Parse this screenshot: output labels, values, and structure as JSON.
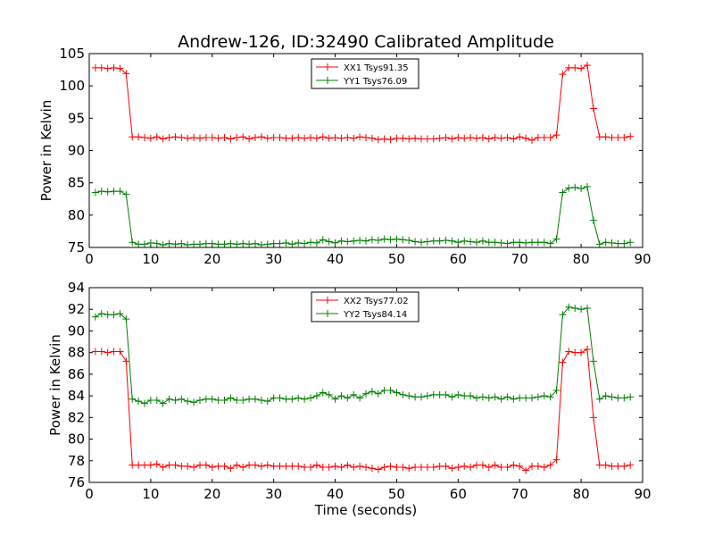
{
  "chart_data": [
    {
      "type": "line",
      "title": "Andrew-126, ID:32490 Calibrated Amplitude",
      "xlabel": "",
      "ylabel": "Power in Kelvin",
      "xlim": [
        0,
        90
      ],
      "ylim": [
        75,
        105
      ],
      "xticks": [
        "0",
        "10",
        "20",
        "30",
        "40",
        "50",
        "60",
        "70",
        "80",
        "90"
      ],
      "yticks": [
        "75",
        "80",
        "85",
        "90",
        "95",
        "100",
        "105"
      ],
      "legend_position": "top-center",
      "series": [
        {
          "name": "XX1 Tsys91.35",
          "color": "#ff0000",
          "x": [
            1,
            2,
            3,
            4,
            5,
            6,
            7,
            8,
            9,
            10,
            11,
            12,
            13,
            14,
            15,
            16,
            17,
            18,
            19,
            20,
            21,
            22,
            23,
            24,
            25,
            26,
            27,
            28,
            29,
            30,
            31,
            32,
            33,
            34,
            35,
            36,
            37,
            38,
            39,
            40,
            41,
            42,
            43,
            44,
            45,
            46,
            47,
            48,
            49,
            50,
            51,
            52,
            53,
            54,
            55,
            56,
            57,
            58,
            59,
            60,
            61,
            62,
            63,
            64,
            65,
            66,
            67,
            68,
            69,
            70,
            71,
            72,
            73,
            74,
            75,
            76,
            77,
            78,
            79,
            80,
            81,
            82,
            83,
            84,
            85,
            86,
            87,
            88
          ],
          "values": [
            102.8,
            102.8,
            102.7,
            102.8,
            102.7,
            101.9,
            92.1,
            92.1,
            92.0,
            91.9,
            92.1,
            91.8,
            92.0,
            92.1,
            92.0,
            91.9,
            92.0,
            91.9,
            92.0,
            92.0,
            91.9,
            92.0,
            91.8,
            92.0,
            92.1,
            91.8,
            92.0,
            92.1,
            91.9,
            92.0,
            92.0,
            91.9,
            91.9,
            92.0,
            91.9,
            92.0,
            91.9,
            92.1,
            91.9,
            92.0,
            91.9,
            92.0,
            91.9,
            92.1,
            92.0,
            91.9,
            91.7,
            91.8,
            91.7,
            91.9,
            91.9,
            91.8,
            91.9,
            91.8,
            91.8,
            91.8,
            91.9,
            92.0,
            91.8,
            92.0,
            91.9,
            92.0,
            91.9,
            92.0,
            91.8,
            92.0,
            91.9,
            92.0,
            91.8,
            92.1,
            91.9,
            91.6,
            92.0,
            92.0,
            92.0,
            92.4,
            101.8,
            102.8,
            102.8,
            102.7,
            103.2,
            96.5,
            92.1,
            92.1,
            92.0,
            92.0,
            92.0,
            92.2
          ]
        },
        {
          "name": "YY1 Tsys76.09",
          "color": "#008000",
          "x": [
            1,
            2,
            3,
            4,
            5,
            6,
            7,
            8,
            9,
            10,
            11,
            12,
            13,
            14,
            15,
            16,
            17,
            18,
            19,
            20,
            21,
            22,
            23,
            24,
            25,
            26,
            27,
            28,
            29,
            30,
            31,
            32,
            33,
            34,
            35,
            36,
            37,
            38,
            39,
            40,
            41,
            42,
            43,
            44,
            45,
            46,
            47,
            48,
            49,
            50,
            51,
            52,
            53,
            54,
            55,
            56,
            57,
            58,
            59,
            60,
            61,
            62,
            63,
            64,
            65,
            66,
            67,
            68,
            69,
            70,
            71,
            72,
            73,
            74,
            75,
            76,
            77,
            78,
            79,
            80,
            81,
            82,
            83,
            84,
            85,
            86,
            87,
            88
          ],
          "values": [
            83.5,
            83.7,
            83.6,
            83.7,
            83.7,
            83.2,
            75.8,
            75.5,
            75.5,
            75.7,
            75.6,
            75.4,
            75.6,
            75.5,
            75.6,
            75.4,
            75.5,
            75.5,
            75.6,
            75.6,
            75.5,
            75.5,
            75.6,
            75.5,
            75.6,
            75.5,
            75.6,
            75.4,
            75.5,
            75.6,
            75.6,
            75.7,
            75.5,
            75.7,
            75.6,
            75.8,
            75.7,
            76.2,
            75.9,
            75.7,
            76.0,
            75.9,
            76.0,
            76.1,
            76.0,
            76.2,
            76.1,
            76.3,
            76.2,
            76.3,
            76.2,
            76.1,
            75.9,
            75.8,
            75.9,
            76.0,
            76.0,
            76.1,
            76.0,
            75.8,
            76.0,
            75.9,
            75.8,
            76.0,
            75.8,
            75.8,
            75.7,
            75.6,
            75.8,
            75.8,
            75.7,
            75.8,
            75.8,
            75.8,
            75.6,
            76.3,
            83.5,
            84.2,
            84.3,
            84.1,
            84.4,
            79.2,
            75.5,
            75.8,
            75.7,
            75.6,
            75.6,
            75.8
          ]
        }
      ]
    },
    {
      "type": "line",
      "title": "",
      "xlabel": "Time (seconds)",
      "ylabel": "Power in Kelvin",
      "xlim": [
        0,
        90
      ],
      "ylim": [
        76,
        94
      ],
      "xticks": [
        "0",
        "10",
        "20",
        "30",
        "40",
        "50",
        "60",
        "70",
        "80",
        "90"
      ],
      "yticks": [
        "76",
        "78",
        "80",
        "82",
        "84",
        "86",
        "88",
        "90",
        "92",
        "94"
      ],
      "legend_position": "top-center",
      "series": [
        {
          "name": "XX2 Tsys77.02",
          "color": "#ff0000",
          "x": [
            1,
            2,
            3,
            4,
            5,
            6,
            7,
            8,
            9,
            10,
            11,
            12,
            13,
            14,
            15,
            16,
            17,
            18,
            19,
            20,
            21,
            22,
            23,
            24,
            25,
            26,
            27,
            28,
            29,
            30,
            31,
            32,
            33,
            34,
            35,
            36,
            37,
            38,
            39,
            40,
            41,
            42,
            43,
            44,
            45,
            46,
            47,
            48,
            49,
            50,
            51,
            52,
            53,
            54,
            55,
            56,
            57,
            58,
            59,
            60,
            61,
            62,
            63,
            64,
            65,
            66,
            67,
            68,
            69,
            70,
            71,
            72,
            73,
            74,
            75,
            76,
            77,
            78,
            79,
            80,
            81,
            82,
            83,
            84,
            85,
            86,
            87,
            88
          ],
          "values": [
            88.1,
            88.1,
            88.0,
            88.1,
            88.1,
            87.2,
            77.6,
            77.6,
            77.6,
            77.6,
            77.7,
            77.4,
            77.6,
            77.6,
            77.5,
            77.5,
            77.4,
            77.6,
            77.6,
            77.4,
            77.5,
            77.5,
            77.3,
            77.6,
            77.4,
            77.6,
            77.6,
            77.5,
            77.6,
            77.5,
            77.5,
            77.5,
            77.5,
            77.5,
            77.4,
            77.4,
            77.6,
            77.4,
            77.4,
            77.5,
            77.4,
            77.6,
            77.4,
            77.5,
            77.4,
            77.3,
            77.2,
            77.4,
            77.5,
            77.4,
            77.4,
            77.3,
            77.4,
            77.4,
            77.4,
            77.4,
            77.5,
            77.5,
            77.3,
            77.4,
            77.5,
            77.4,
            77.6,
            77.6,
            77.4,
            77.6,
            77.4,
            77.4,
            77.6,
            77.5,
            77.1,
            77.5,
            77.5,
            77.4,
            77.6,
            78.1,
            87.1,
            88.1,
            88.0,
            88.0,
            88.3,
            82.0,
            77.6,
            77.6,
            77.5,
            77.5,
            77.5,
            77.6
          ]
        },
        {
          "name": "YY2 Tsys84.14",
          "color": "#008000",
          "x": [
            1,
            2,
            3,
            4,
            5,
            6,
            7,
            8,
            9,
            10,
            11,
            12,
            13,
            14,
            15,
            16,
            17,
            18,
            19,
            20,
            21,
            22,
            23,
            24,
            25,
            26,
            27,
            28,
            29,
            30,
            31,
            32,
            33,
            34,
            35,
            36,
            37,
            38,
            39,
            40,
            41,
            42,
            43,
            44,
            45,
            46,
            47,
            48,
            49,
            50,
            51,
            52,
            53,
            54,
            55,
            56,
            57,
            58,
            59,
            60,
            61,
            62,
            63,
            64,
            65,
            66,
            67,
            68,
            69,
            70,
            71,
            72,
            73,
            74,
            75,
            76,
            77,
            78,
            79,
            80,
            81,
            82,
            83,
            84,
            85,
            86,
            87,
            88
          ],
          "values": [
            91.3,
            91.6,
            91.5,
            91.5,
            91.6,
            91.1,
            83.7,
            83.5,
            83.3,
            83.6,
            83.6,
            83.3,
            83.7,
            83.6,
            83.7,
            83.5,
            83.4,
            83.6,
            83.7,
            83.7,
            83.6,
            83.6,
            83.8,
            83.6,
            83.6,
            83.7,
            83.7,
            83.6,
            83.5,
            83.8,
            83.8,
            83.7,
            83.7,
            83.8,
            83.7,
            83.8,
            84.0,
            84.3,
            84.1,
            83.7,
            84.0,
            83.8,
            84.1,
            83.8,
            84.2,
            84.4,
            84.2,
            84.5,
            84.5,
            84.3,
            84.1,
            84.0,
            83.9,
            83.9,
            84.0,
            84.1,
            84.1,
            84.1,
            83.9,
            84.1,
            84.0,
            84.0,
            83.8,
            83.9,
            83.8,
            83.9,
            83.7,
            83.9,
            83.7,
            83.8,
            83.8,
            83.8,
            83.9,
            84.0,
            83.9,
            84.5,
            91.5,
            92.2,
            92.1,
            92.0,
            92.1,
            87.2,
            83.7,
            84.0,
            83.9,
            83.8,
            83.8,
            83.9
          ]
        }
      ]
    }
  ]
}
